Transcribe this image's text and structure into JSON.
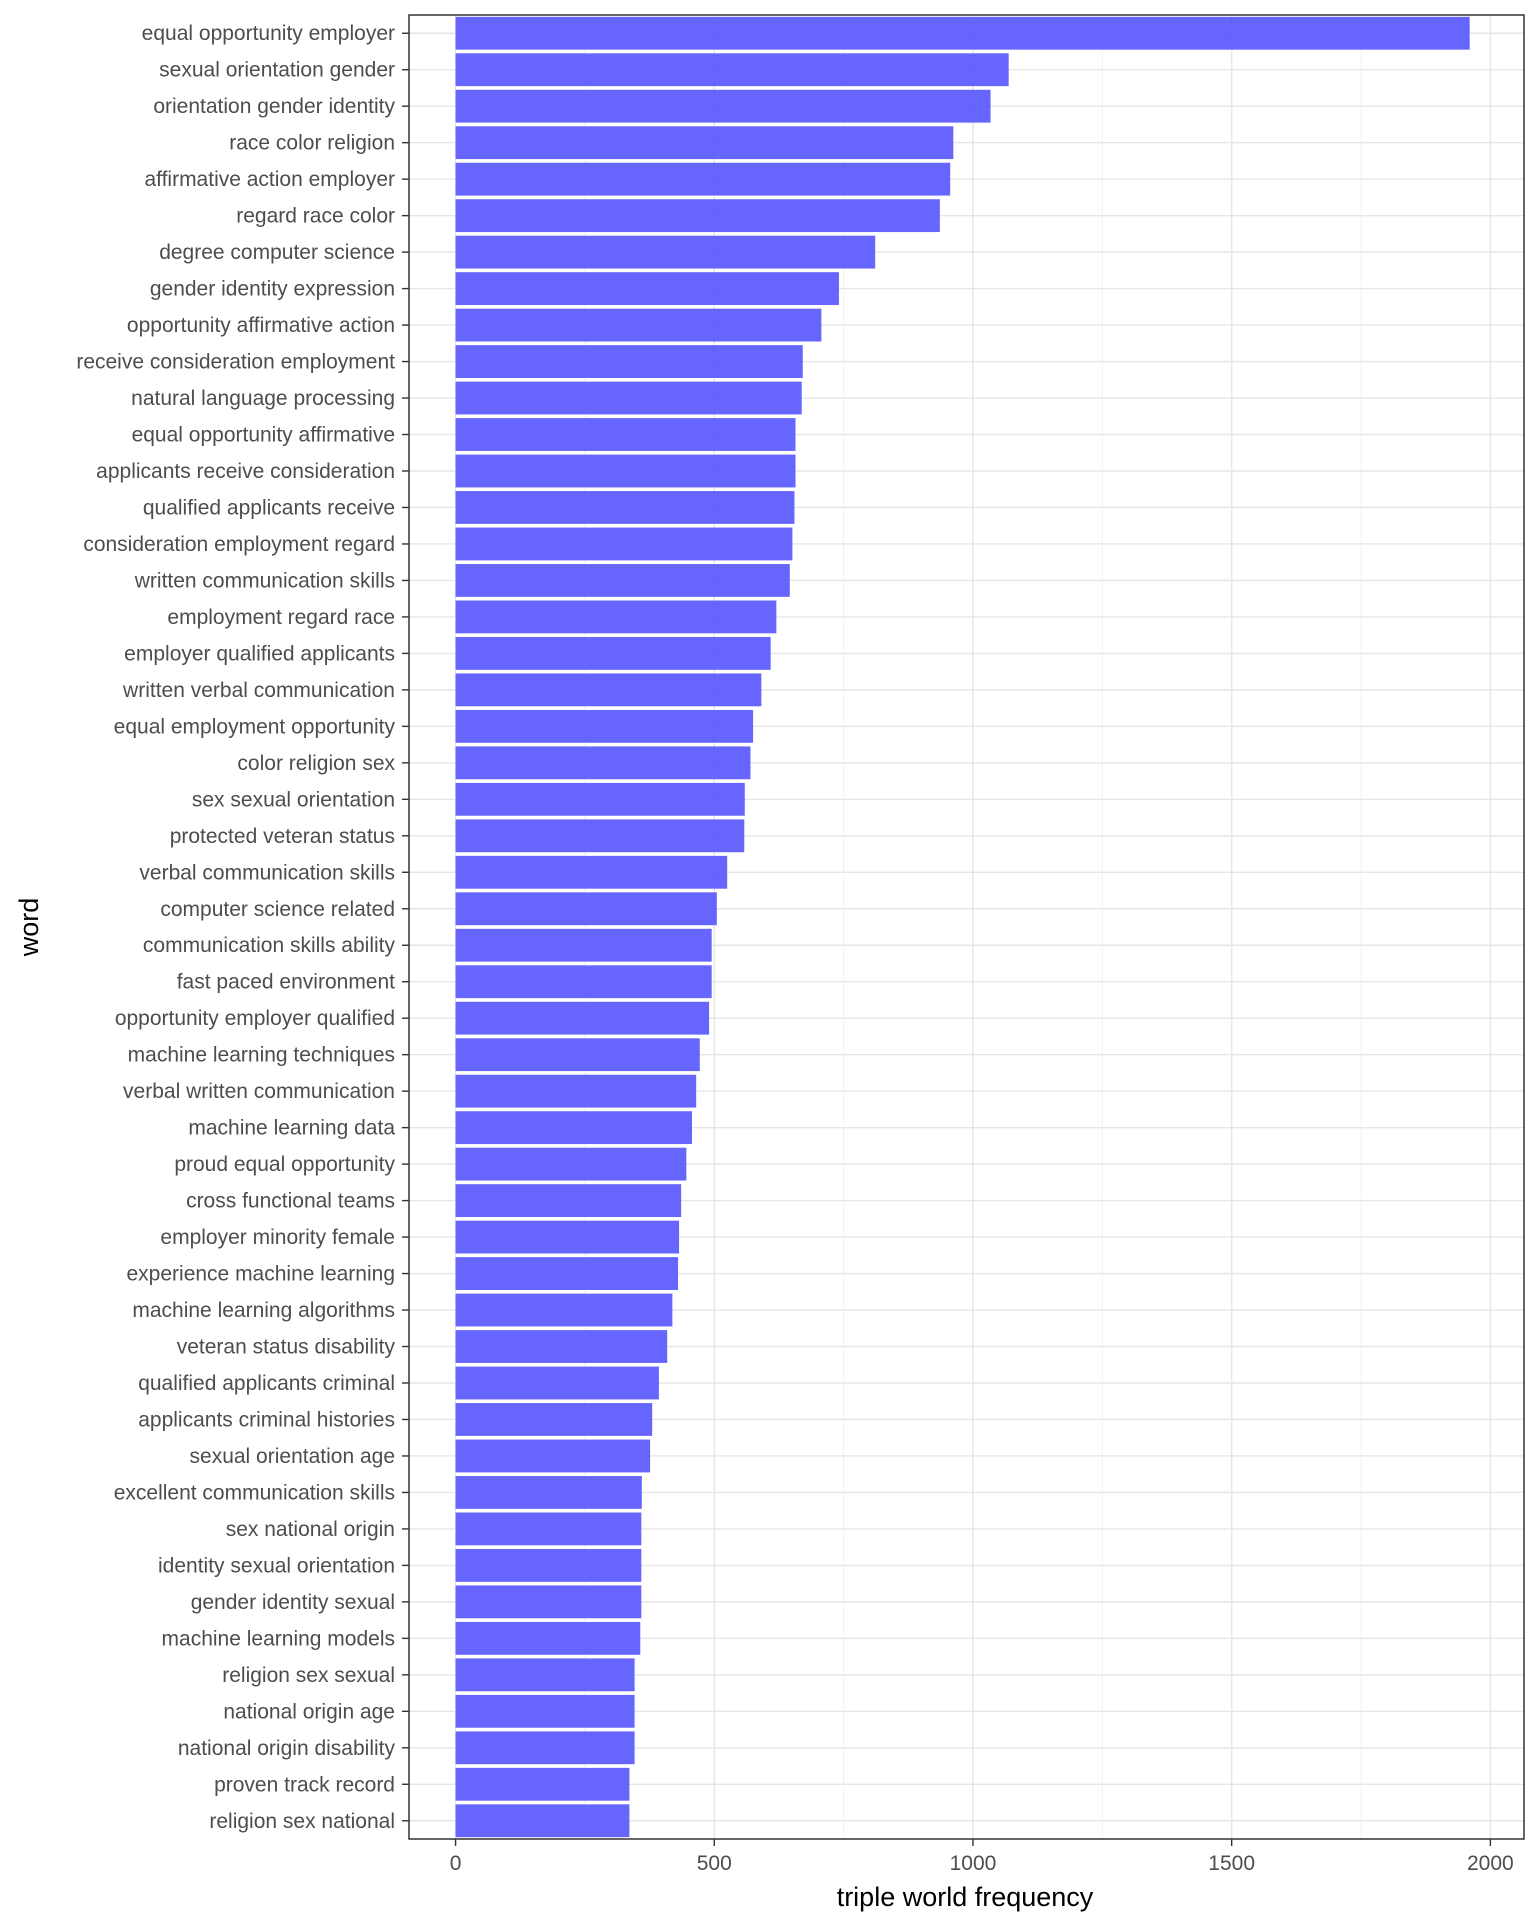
{
  "chart_data": {
    "type": "bar",
    "orientation": "horizontal",
    "xlabel": "triple world frequency",
    "ylabel": "word",
    "xlim": [
      -90,
      2065
    ],
    "x_ticks": [
      0,
      500,
      1000,
      1500,
      2000
    ],
    "grid": true,
    "bar_color": "#5555ff",
    "categories": [
      "equal opportunity employer",
      "sexual orientation gender",
      "orientation gender identity",
      "race color religion",
      "affirmative action employer",
      "regard race color",
      "degree computer science",
      "gender identity expression",
      "opportunity affirmative action",
      "receive consideration employment",
      "natural language processing",
      "equal opportunity affirmative",
      "applicants receive consideration",
      "qualified applicants receive",
      "consideration employment regard",
      "written communication skills",
      "employment regard race",
      "employer qualified applicants",
      "written verbal communication",
      "equal employment opportunity",
      "color religion sex",
      "sex sexual orientation",
      "protected veteran status",
      "verbal communication skills",
      "computer science related",
      "communication skills ability",
      "fast paced environment",
      "opportunity employer qualified",
      "machine learning techniques",
      "verbal written communication",
      "machine learning data",
      "proud equal opportunity",
      "cross functional teams",
      "employer minority female",
      "experience machine learning",
      "machine learning algorithms",
      "veteran status disability",
      "qualified applicants criminal",
      "applicants criminal histories",
      "sexual orientation age",
      "excellent communication skills",
      "sex national origin",
      "identity sexual orientation",
      "gender identity sexual",
      "machine learning models",
      "religion sex sexual",
      "national origin age",
      "national origin disability",
      "proven track record",
      "religion sex national"
    ],
    "values": [
      1960,
      1069,
      1034,
      962,
      956,
      936,
      811,
      741,
      707,
      671,
      669,
      657,
      657,
      655,
      651,
      646,
      620,
      609,
      591,
      575,
      570,
      559,
      558,
      525,
      505,
      495,
      495,
      490,
      472,
      465,
      457,
      446,
      436,
      432,
      430,
      419,
      409,
      393,
      380,
      376,
      360,
      359,
      359,
      359,
      357,
      346,
      346,
      346,
      336,
      336
    ]
  }
}
